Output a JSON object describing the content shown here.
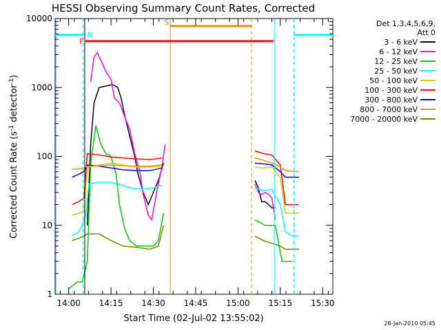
{
  "chart_data": {
    "type": "line",
    "title": "HESSI Observing Summary Count Rates, Corrected",
    "xlabel": "Start Time (02-Jul-02 13:55:02)",
    "ylabel_main": "Corrected Count Rate (s",
    "ylabel_sup": "-1",
    "ylabel_mid": " detector",
    "ylabel_end": ")",
    "yscale": "log",
    "ylim": [
      1,
      10000
    ],
    "xlim_minutes": [
      13.92,
      15.56
    ],
    "y_ticks": [
      {
        "v": 1,
        "label": "1"
      },
      {
        "v": 10,
        "label": "10"
      },
      {
        "v": 100,
        "label": "100"
      },
      {
        "v": 1000,
        "label": "1000"
      },
      {
        "v": 10000,
        "label": "10000"
      }
    ],
    "x_ticks": [
      {
        "v": 14.0,
        "label": "14:00"
      },
      {
        "v": 14.25,
        "label": "14:15"
      },
      {
        "v": 14.5,
        "label": "14:30"
      },
      {
        "v": 14.75,
        "label": "14:45"
      },
      {
        "v": 15.0,
        "label": "15:00"
      },
      {
        "v": 15.25,
        "label": "15:15"
      },
      {
        "v": 15.5,
        "label": "15:30"
      }
    ],
    "legend_header": [
      "Det 1,3,4,5,6,9,",
      "Att 0"
    ],
    "legend_position": "right",
    "series": [
      {
        "name": "3 - 6 keV",
        "color": "#000000",
        "points": [
          [
            14.11,
            10
          ],
          [
            14.13,
            150
          ],
          [
            14.15,
            600
          ],
          [
            14.18,
            1000
          ],
          [
            14.22,
            1050
          ],
          [
            14.26,
            1100
          ],
          [
            14.29,
            1000
          ],
          [
            14.31,
            700
          ],
          [
            14.33,
            400
          ],
          [
            14.36,
            200
          ],
          [
            14.39,
            100
          ],
          [
            14.41,
            55
          ],
          [
            14.44,
            30
          ],
          [
            14.47,
            20
          ],
          [
            14.5,
            30
          ],
          [
            14.53,
            45
          ],
          [
            14.56,
            80
          ],
          [
            15.1,
            45
          ],
          [
            15.12,
            35
          ],
          [
            15.14,
            22
          ],
          [
            15.16,
            22
          ],
          [
            15.18,
            20
          ],
          [
            15.2,
            18
          ],
          [
            15.22,
            18
          ]
        ]
      },
      {
        "name": "6 - 12 keV",
        "color": "#ff00ff",
        "points": [
          [
            14.13,
            1200
          ],
          [
            14.15,
            2800
          ],
          [
            14.17,
            3200
          ],
          [
            14.19,
            2500
          ],
          [
            14.22,
            1700
          ],
          [
            14.25,
            1300
          ],
          [
            14.27,
            700
          ],
          [
            14.3,
            600
          ],
          [
            14.33,
            380
          ],
          [
            14.36,
            250
          ],
          [
            14.39,
            110
          ],
          [
            14.42,
            60
          ],
          [
            14.44,
            28
          ],
          [
            14.47,
            14
          ],
          [
            14.49,
            12
          ],
          [
            14.52,
            30
          ],
          [
            14.55,
            70
          ],
          [
            14.57,
            150
          ],
          [
            15.1,
            40
          ],
          [
            15.12,
            30
          ],
          [
            15.14,
            28
          ],
          [
            15.16,
            30
          ],
          [
            15.18,
            28
          ],
          [
            15.2,
            25
          ],
          [
            15.22,
            12
          ]
        ]
      },
      {
        "name": "12 - 25 keV",
        "color": "#00cc00",
        "points": [
          [
            14.0,
            1.2
          ],
          [
            14.05,
            1.5
          ],
          [
            14.08,
            1.5
          ],
          [
            14.11,
            3
          ],
          [
            14.13,
            80
          ],
          [
            14.15,
            180
          ],
          [
            14.16,
            280
          ],
          [
            14.19,
            150
          ],
          [
            14.22,
            110
          ],
          [
            14.25,
            100
          ],
          [
            14.28,
            55
          ],
          [
            14.3,
            20
          ],
          [
            14.33,
            9
          ],
          [
            14.36,
            6
          ],
          [
            14.4,
            5
          ],
          [
            14.45,
            5
          ],
          [
            14.5,
            5
          ],
          [
            14.53,
            6
          ],
          [
            14.56,
            15
          ],
          [
            15.1,
            12
          ],
          [
            15.13,
            11
          ],
          [
            15.16,
            10
          ],
          [
            15.19,
            10
          ],
          [
            15.22,
            10
          ],
          [
            15.26,
            3
          ],
          [
            15.32,
            3
          ]
        ]
      },
      {
        "name": "25 - 50 keV",
        "color": "#00ffff",
        "points": [
          [
            14.02,
            7
          ],
          [
            14.06,
            8
          ],
          [
            14.08,
            10
          ],
          [
            14.1,
            14
          ],
          [
            14.12,
            40
          ],
          [
            14.18,
            42
          ],
          [
            14.25,
            42
          ],
          [
            14.32,
            38
          ],
          [
            14.38,
            34
          ],
          [
            14.45,
            34
          ],
          [
            14.5,
            35
          ],
          [
            14.55,
            38
          ],
          [
            15.1,
            35
          ],
          [
            15.15,
            32
          ],
          [
            15.2,
            33
          ],
          [
            15.25,
            20
          ],
          [
            15.28,
            8
          ],
          [
            15.32,
            7
          ],
          [
            15.36,
            7
          ]
        ]
      },
      {
        "name": "50 - 100 keV",
        "color": "#cccc00",
        "points": [
          [
            14.02,
            14
          ],
          [
            14.06,
            15
          ],
          [
            14.09,
            16
          ],
          [
            14.11,
            70
          ],
          [
            14.18,
            75
          ],
          [
            14.25,
            80
          ],
          [
            14.32,
            75
          ],
          [
            14.4,
            70
          ],
          [
            14.48,
            70
          ],
          [
            14.55,
            72
          ],
          [
            15.1,
            70
          ],
          [
            15.15,
            68
          ],
          [
            15.2,
            70
          ],
          [
            15.25,
            50
          ],
          [
            15.28,
            15
          ],
          [
            15.36,
            15
          ]
        ]
      },
      {
        "name": "100 - 300 keV",
        "color": "#ff0000",
        "points": [
          [
            14.02,
            20
          ],
          [
            14.06,
            22
          ],
          [
            14.09,
            25
          ],
          [
            14.11,
            110
          ],
          [
            14.18,
            105
          ],
          [
            14.25,
            98
          ],
          [
            14.32,
            95
          ],
          [
            14.4,
            92
          ],
          [
            14.48,
            90
          ],
          [
            14.55,
            95
          ],
          [
            15.1,
            120
          ],
          [
            15.15,
            110
          ],
          [
            15.2,
            105
          ],
          [
            15.25,
            75
          ],
          [
            15.28,
            20
          ],
          [
            15.36,
            20
          ]
        ]
      },
      {
        "name": "300 - 800 keV",
        "color": "#0000cc",
        "points": [
          [
            14.02,
            50
          ],
          [
            14.06,
            55
          ],
          [
            14.09,
            60
          ],
          [
            14.11,
            75
          ],
          [
            14.18,
            72
          ],
          [
            14.25,
            68
          ],
          [
            14.32,
            64
          ],
          [
            14.4,
            62
          ],
          [
            14.48,
            62
          ],
          [
            14.55,
            68
          ],
          [
            15.1,
            80
          ],
          [
            15.15,
            78
          ],
          [
            15.2,
            75
          ],
          [
            15.25,
            60
          ],
          [
            15.28,
            50
          ],
          [
            15.36,
            50
          ]
        ]
      },
      {
        "name": "800 - 7000 keV",
        "color": "#ff8800",
        "points": [
          [
            14.02,
            65
          ],
          [
            14.06,
            66
          ],
          [
            14.09,
            68
          ],
          [
            14.11,
            72
          ],
          [
            14.18,
            73
          ],
          [
            14.25,
            75
          ],
          [
            14.32,
            73
          ],
          [
            14.4,
            72
          ],
          [
            14.48,
            72
          ],
          [
            14.55,
            75
          ],
          [
            15.1,
            95
          ],
          [
            15.15,
            88
          ],
          [
            15.2,
            80
          ],
          [
            15.25,
            70
          ],
          [
            15.28,
            62
          ],
          [
            15.36,
            60
          ]
        ]
      },
      {
        "name": "7000 - 20000 keV",
        "color": "#808000",
        "points": [
          [
            14.02,
            6
          ],
          [
            14.06,
            6.5
          ],
          [
            14.09,
            7
          ],
          [
            14.11,
            7.5
          ],
          [
            14.18,
            7.5
          ],
          [
            14.25,
            6
          ],
          [
            14.32,
            5
          ],
          [
            14.4,
            4.8
          ],
          [
            14.48,
            4.5
          ],
          [
            14.53,
            5
          ],
          [
            14.56,
            10
          ],
          [
            15.1,
            7
          ],
          [
            15.15,
            6
          ],
          [
            15.2,
            5.5
          ],
          [
            15.25,
            5
          ],
          [
            15.28,
            4.5
          ],
          [
            15.36,
            4.5
          ]
        ]
      }
    ],
    "annotations": {
      "night_flag": {
        "label": "N",
        "color": "#00ffff",
        "level": 5800,
        "segments": [
          [
            13.92,
            14.09
          ],
          [
            15.33,
            15.56
          ]
        ]
      },
      "flare_flag": {
        "label": "F",
        "color": "#ff0000",
        "level": 4700,
        "segments": [
          [
            14.1,
            15.21
          ]
        ]
      },
      "saa_flag": {
        "label": "S",
        "color": "#ff8800",
        "level": 7800,
        "segments": [
          [
            14.6,
            15.08
          ]
        ]
      },
      "vlines": [
        {
          "x": 13.925,
          "color": "#00ffff",
          "style": "solid"
        },
        {
          "x": 14.085,
          "color": "#00ffff",
          "style": "dashed"
        },
        {
          "x": 14.095,
          "color": "#000000",
          "style": "solid"
        },
        {
          "x": 14.6,
          "color": "#ff8800",
          "style": "solid"
        },
        {
          "x": 15.08,
          "color": "#ff8800",
          "style": "dashed"
        },
        {
          "x": 15.215,
          "color": "#00ffff",
          "style": "solid"
        },
        {
          "x": 15.33,
          "color": "#00ffff",
          "style": "dashed"
        }
      ]
    }
  },
  "timestamp": "28-Jan-2010 05:45"
}
